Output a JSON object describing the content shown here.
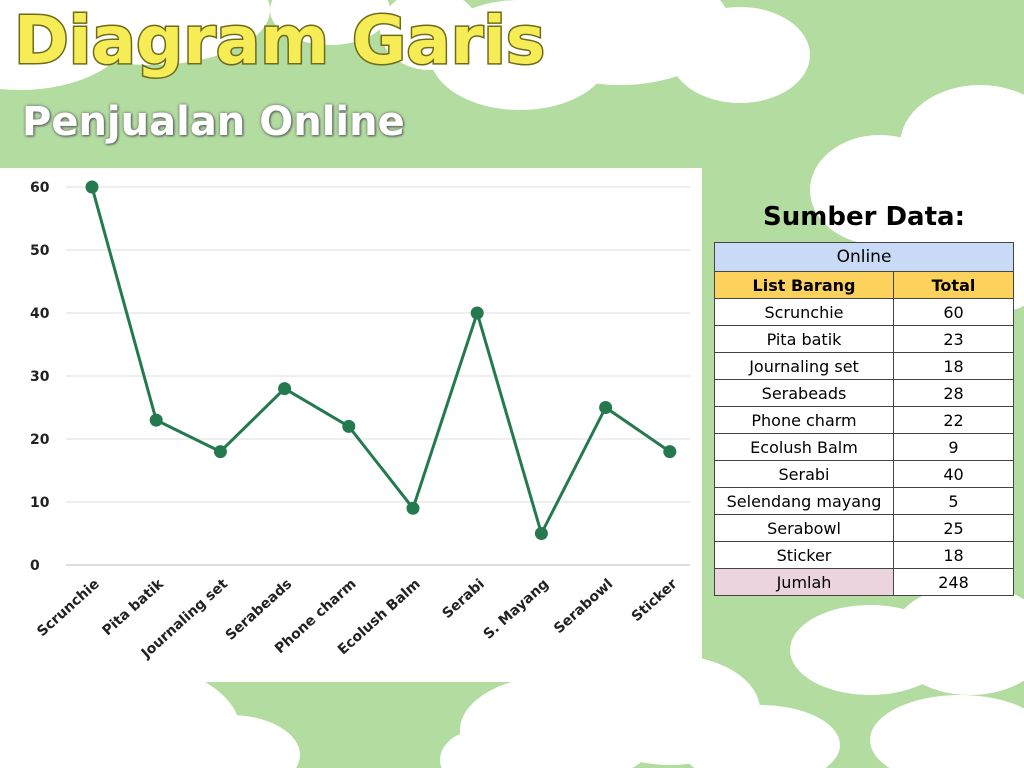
{
  "header": {
    "title": "Diagram Garis",
    "subtitle": "Penjualan Online"
  },
  "colors": {
    "background": "#b2dca0",
    "line": "#247a4e",
    "title_fill": "#f6ec56",
    "table_top": "#c8daf6",
    "table_header": "#fcd25d",
    "table_total": "#ecd4de"
  },
  "chart_data": {
    "type": "line",
    "categories": [
      "Scrunchie",
      "Pita batik",
      "Journaling set",
      "Serabeads",
      "Phone charm",
      "Ecolush Balm",
      "Serabi",
      "S. Mayang",
      "Serabowl",
      "Sticker"
    ],
    "series": [
      {
        "values": [
          60,
          23,
          18,
          28,
          22,
          9,
          40,
          5,
          25,
          18
        ]
      }
    ],
    "ylim": [
      0,
      60
    ],
    "yticks": [
      0,
      10,
      20,
      30,
      40,
      50,
      60
    ],
    "grid": true,
    "xlabel": "",
    "ylabel": ""
  },
  "source": {
    "title": "Sumber Data:",
    "table_title": "Online",
    "columns": [
      "List Barang",
      "Total"
    ],
    "rows": [
      [
        "Scrunchie",
        "60"
      ],
      [
        "Pita batik",
        "23"
      ],
      [
        "Journaling set",
        "18"
      ],
      [
        "Serabeads",
        "28"
      ],
      [
        "Phone charm",
        "22"
      ],
      [
        "Ecolush Balm",
        "9"
      ],
      [
        "Serabi",
        "40"
      ],
      [
        "Selendang mayang",
        "5"
      ],
      [
        "Serabowl",
        "25"
      ],
      [
        "Sticker",
        "18"
      ]
    ],
    "total_label": "Jumlah",
    "total_value": "248"
  }
}
